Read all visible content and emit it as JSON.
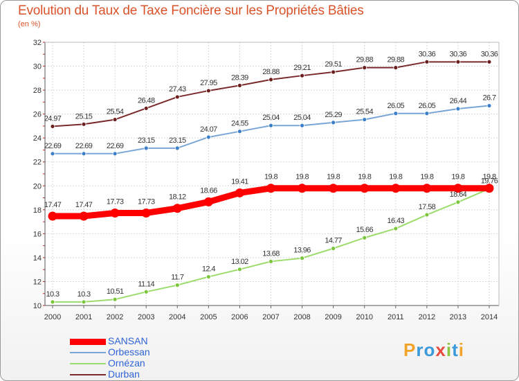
{
  "title": "Evolution du Taux de Taxe Foncière sur les Propriétés Bâties",
  "subtitle": "(en %)",
  "logo": {
    "text": "Proxiti",
    "colors": [
      "#f2a428",
      "#3a9ad9",
      "#3a9ad9",
      "#e84b3c",
      "#8cc63f",
      "#3a9ad9",
      "#f2a428"
    ]
  },
  "chart_data": {
    "type": "line",
    "title": "Evolution du Taux de Taxe Foncière sur les Propriétés Bâties",
    "ylabel": "(en %)",
    "xlabel": "",
    "ylim": [
      10,
      32
    ],
    "yticks": [
      10,
      12,
      14,
      16,
      18,
      20,
      22,
      24,
      26,
      28,
      30,
      32
    ],
    "grid": true,
    "legend_position": "bottom-left",
    "x": [
      "2000",
      "2001",
      "2002",
      "2003",
      "2004",
      "2005",
      "2006",
      "2007",
      "2008",
      "2009",
      "2010",
      "2011",
      "2012",
      "2013",
      "2014"
    ],
    "series": [
      {
        "name": "SANSAN",
        "color": "#ff0000",
        "marker": "#ff0000",
        "width": 9,
        "values": [
          17.47,
          17.47,
          17.73,
          17.73,
          18.12,
          18.66,
          19.41,
          19.8,
          19.8,
          19.8,
          19.8,
          19.8,
          19.8,
          19.8,
          19.8
        ],
        "labels": [
          "17.47",
          "17.47",
          "17.73",
          "17.73",
          "18.12",
          "18.66",
          "19.41",
          "19.8",
          "19.8",
          "19.8",
          "19.8",
          "19.8",
          "19.8",
          "19.8",
          "19.8"
        ]
      },
      {
        "name": "Orbessan",
        "color": "#7aa6d6",
        "marker": "#3a7fc8",
        "width": 2,
        "values": [
          22.69,
          22.69,
          22.69,
          23.15,
          23.15,
          24.07,
          24.55,
          25.04,
          25.04,
          25.29,
          25.54,
          26.05,
          26.05,
          26.44,
          26.7
        ],
        "labels": [
          "22.69",
          "22.69",
          "22.69",
          "23.15",
          "23.15",
          "24.07",
          "24.55",
          "25.04",
          "25.04",
          "25.29",
          "25.54",
          "26.05",
          "26.05",
          "26.44",
          "26.7"
        ]
      },
      {
        "name": "Ornézan",
        "color": "#9bdc6a",
        "marker": "#7cc63c",
        "width": 2,
        "values": [
          10.3,
          10.3,
          10.51,
          11.14,
          11.7,
          12.4,
          13.02,
          13.68,
          13.96,
          14.77,
          15.66,
          16.43,
          17.58,
          18.64,
          19.76
        ],
        "labels": [
          "10.3",
          "10.3",
          "10.51",
          "11.14",
          "11.7",
          "12.4",
          "13.02",
          "13.68",
          "13.96",
          "14.77",
          "15.66",
          "16.43",
          "17.58",
          "18.64",
          "19.76"
        ]
      },
      {
        "name": "Durban",
        "color": "#7a2a2a",
        "marker": "#6b1f1f",
        "width": 2,
        "values": [
          24.97,
          25.15,
          25.54,
          26.48,
          27.43,
          27.95,
          28.39,
          28.88,
          29.21,
          29.51,
          29.88,
          29.88,
          30.36,
          30.36,
          30.36
        ],
        "labels": [
          "24.97",
          "25.15",
          "25.54",
          "26.48",
          "27.43",
          "27.95",
          "28.39",
          "28.88",
          "29.21",
          "29.51",
          "29.88",
          "29.88",
          "30.36",
          "30.36",
          "30.36"
        ]
      }
    ]
  }
}
